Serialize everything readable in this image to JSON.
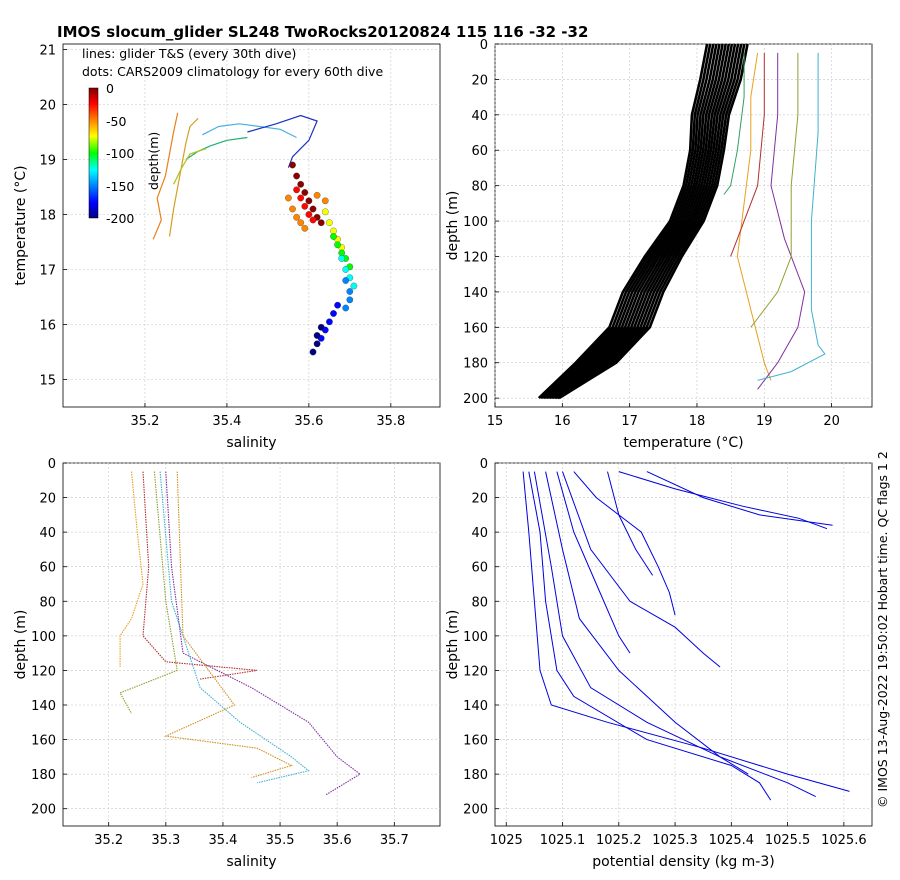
{
  "title": "IMOS slocum_glider SL248 TwoRocks20120824 115  116  -32  -32",
  "side_note": "© IMOS 13-Aug-2022 19:50:02 Hobart time. QC flags 1  2",
  "chart_data": [
    {
      "id": "ts",
      "type": "scatter",
      "xlabel": "salinity",
      "ylabel": "temperature (°C)",
      "xlim": [
        35.0,
        35.92
      ],
      "ylim": [
        14.5,
        21.1
      ],
      "xticks": [
        35.2,
        35.4,
        35.6,
        35.8
      ],
      "yticks": [
        15,
        16,
        17,
        18,
        19,
        20,
        21
      ],
      "legend": [
        "lines: glider T&S (every 30th dive)",
        "dots: CARS2009 climatology for every 60th dive"
      ],
      "colorbar": {
        "label": "depth(m)",
        "ticks": [
          0,
          -50,
          -100,
          -150,
          -200
        ],
        "range": [
          -200,
          0
        ]
      },
      "series": [
        {
          "name": "glider dive A",
          "color": "#e8801a",
          "points": [
            [
              35.22,
              17.55
            ],
            [
              35.24,
              17.9
            ],
            [
              35.23,
              18.3
            ],
            [
              35.25,
              18.7
            ],
            [
              35.26,
              19.1
            ],
            [
              35.27,
              19.5
            ],
            [
              35.28,
              19.85
            ]
          ]
        },
        {
          "name": "glider dive B",
          "color": "#d4a020",
          "points": [
            [
              35.26,
              17.6
            ],
            [
              35.27,
              18.1
            ],
            [
              35.28,
              18.5
            ],
            [
              35.29,
              18.9
            ],
            [
              35.3,
              19.3
            ],
            [
              35.31,
              19.6
            ],
            [
              35.33,
              19.75
            ]
          ]
        },
        {
          "name": "glider dive C",
          "color": "#4ab0e0",
          "points": [
            [
              35.34,
              19.45
            ],
            [
              35.38,
              19.6
            ],
            [
              35.43,
              19.65
            ],
            [
              35.48,
              19.6
            ],
            [
              35.53,
              19.55
            ],
            [
              35.57,
              19.4
            ]
          ]
        },
        {
          "name": "glider dive D",
          "color": "#1a30c0",
          "points": [
            [
              35.45,
              19.5
            ],
            [
              35.52,
              19.65
            ],
            [
              35.58,
              19.8
            ],
            [
              35.62,
              19.7
            ],
            [
              35.6,
              19.35
            ],
            [
              35.56,
              19.05
            ],
            [
              35.55,
              18.85
            ]
          ]
        },
        {
          "name": "glider dive E",
          "color": "#20b070",
          "points": [
            [
              35.3,
              19.0
            ],
            [
              35.33,
              19.15
            ],
            [
              35.36,
              19.25
            ],
            [
              35.4,
              19.35
            ],
            [
              35.45,
              19.4
            ]
          ]
        },
        {
          "name": "glider dive F",
          "color": "#b0c020",
          "points": [
            [
              35.27,
              18.55
            ],
            [
              35.29,
              18.85
            ],
            [
              35.31,
              19.1
            ],
            [
              35.35,
              19.2
            ]
          ]
        }
      ],
      "dots": [
        {
          "depth": -2,
          "points": [
            [
              35.56,
              18.9
            ],
            [
              35.57,
              18.7
            ],
            [
              35.58,
              18.55
            ],
            [
              35.59,
              18.4
            ],
            [
              35.6,
              18.25
            ],
            [
              35.61,
              18.1
            ],
            [
              35.62,
              17.95
            ],
            [
              35.63,
              17.85
            ]
          ]
        },
        {
          "depth": -25,
          "points": [
            [
              35.57,
              18.45
            ],
            [
              35.58,
              18.3
            ],
            [
              35.59,
              18.15
            ],
            [
              35.6,
              18.0
            ],
            [
              35.61,
              17.9
            ]
          ]
        },
        {
          "depth": -50,
          "points": [
            [
              35.55,
              18.3
            ],
            [
              35.56,
              18.1
            ],
            [
              35.57,
              17.95
            ],
            [
              35.58,
              17.85
            ],
            [
              35.59,
              17.75
            ],
            [
              35.62,
              18.35
            ],
            [
              35.64,
              18.25
            ]
          ]
        },
        {
          "depth": -75,
          "points": [
            [
              35.64,
              18.05
            ],
            [
              35.65,
              17.85
            ],
            [
              35.66,
              17.7
            ],
            [
              35.67,
              17.55
            ],
            [
              35.68,
              17.4
            ]
          ]
        },
        {
          "depth": -100,
          "points": [
            [
              35.66,
              17.6
            ],
            [
              35.67,
              17.45
            ],
            [
              35.68,
              17.3
            ],
            [
              35.69,
              17.2
            ],
            [
              35.7,
              17.05
            ]
          ]
        },
        {
          "depth": -125,
          "points": [
            [
              35.68,
              17.2
            ],
            [
              35.69,
              17.0
            ],
            [
              35.7,
              16.85
            ],
            [
              35.71,
              16.7
            ]
          ]
        },
        {
          "depth": -150,
          "points": [
            [
              35.69,
              16.8
            ],
            [
              35.7,
              16.6
            ],
            [
              35.7,
              16.45
            ],
            [
              35.69,
              16.3
            ]
          ]
        },
        {
          "depth": -175,
          "points": [
            [
              35.67,
              16.35
            ],
            [
              35.66,
              16.2
            ],
            [
              35.65,
              16.05
            ],
            [
              35.64,
              15.9
            ],
            [
              35.63,
              15.75
            ]
          ]
        },
        {
          "depth": -200,
          "points": [
            [
              35.63,
              15.95
            ],
            [
              35.62,
              15.8
            ],
            [
              35.62,
              15.65
            ],
            [
              35.61,
              15.5
            ]
          ]
        }
      ]
    },
    {
      "id": "temp",
      "type": "line",
      "xlabel": "temperature (°C)",
      "ylabel": "depth (m)",
      "xlim": [
        15,
        20.6
      ],
      "ylim": [
        0,
        205
      ],
      "xticks": [
        15,
        16,
        17,
        18,
        19,
        20
      ],
      "yticks": [
        0,
        20,
        40,
        60,
        80,
        100,
        120,
        140,
        160,
        180,
        200
      ],
      "climatology_profile": {
        "depth": [
          0,
          20,
          40,
          60,
          80,
          100,
          120,
          140,
          160,
          180,
          200
        ],
        "temperature": [
          18.45,
          18.35,
          18.2,
          18.15,
          18.05,
          17.85,
          17.5,
          17.2,
          17.0,
          16.5,
          15.8
        ],
        "spread": [
          0.6,
          0.6,
          0.55,
          0.5,
          0.5,
          0.5,
          0.55,
          0.6,
          0.6,
          0.6,
          0.3
        ]
      },
      "series": [
        {
          "name": "p1",
          "color": "#e8a020",
          "depth": [
            5,
            30,
            60,
            90,
            120,
            150,
            180,
            190
          ],
          "values": [
            18.9,
            18.8,
            18.8,
            18.7,
            18.6,
            18.8,
            19.0,
            19.1
          ]
        },
        {
          "name": "p2",
          "color": "#b03030",
          "depth": [
            5,
            40,
            80,
            100,
            110,
            120
          ],
          "values": [
            19.0,
            19.0,
            18.9,
            18.7,
            18.6,
            18.5
          ]
        },
        {
          "name": "p3",
          "color": "#8030a0",
          "depth": [
            5,
            40,
            80,
            110,
            140,
            160,
            180,
            195
          ],
          "values": [
            19.2,
            19.2,
            19.1,
            19.3,
            19.6,
            19.5,
            19.2,
            18.9
          ]
        },
        {
          "name": "p4",
          "color": "#40b0d0",
          "depth": [
            5,
            50,
            100,
            150,
            170,
            175,
            185,
            190
          ],
          "values": [
            19.8,
            19.8,
            19.7,
            19.7,
            19.8,
            19.9,
            19.4,
            18.9
          ]
        },
        {
          "name": "p5",
          "color": "#90a030",
          "depth": [
            5,
            40,
            80,
            120,
            140,
            155,
            160
          ],
          "values": [
            19.5,
            19.5,
            19.4,
            19.4,
            19.2,
            18.9,
            18.8
          ]
        },
        {
          "name": "p6",
          "color": "#30a060",
          "depth": [
            5,
            30,
            60,
            80,
            85
          ],
          "values": [
            18.7,
            18.7,
            18.6,
            18.5,
            18.4
          ]
        }
      ]
    },
    {
      "id": "sal",
      "type": "line",
      "xlabel": "salinity",
      "ylabel": "depth (m)",
      "xlim": [
        35.12,
        35.78
      ],
      "ylim": [
        0,
        210
      ],
      "xticks": [
        35.2,
        35.3,
        35.4,
        35.5,
        35.6,
        35.7
      ],
      "yticks": [
        0,
        20,
        40,
        60,
        80,
        100,
        120,
        140,
        160,
        180,
        200
      ],
      "series": [
        {
          "name": "s1",
          "color": "#e8a020",
          "depth": [
            5,
            40,
            70,
            90,
            100,
            110,
            118
          ],
          "values": [
            35.24,
            35.25,
            35.26,
            35.24,
            35.22,
            35.22,
            35.22
          ]
        },
        {
          "name": "s2",
          "color": "#b03030",
          "depth": [
            5,
            60,
            100,
            115,
            120,
            125
          ],
          "values": [
            35.26,
            35.27,
            35.26,
            35.3,
            35.46,
            35.36
          ]
        },
        {
          "name": "s3",
          "color": "#8030a0",
          "depth": [
            5,
            60,
            110,
            130,
            150,
            170,
            180,
            192
          ],
          "values": [
            35.3,
            35.31,
            35.33,
            35.45,
            35.55,
            35.6,
            35.64,
            35.58
          ]
        },
        {
          "name": "s4",
          "color": "#40b0d0",
          "depth": [
            5,
            80,
            130,
            150,
            170,
            178,
            185
          ],
          "values": [
            35.29,
            35.31,
            35.36,
            35.43,
            35.52,
            35.55,
            35.46
          ]
        },
        {
          "name": "s5",
          "color": "#90a030",
          "depth": [
            5,
            80,
            120,
            133,
            145
          ],
          "values": [
            35.28,
            35.3,
            35.32,
            35.22,
            35.24
          ]
        },
        {
          "name": "s6",
          "color": "#d09020",
          "depth": [
            5,
            100,
            140,
            158,
            165,
            175,
            182
          ],
          "values": [
            35.32,
            35.33,
            35.42,
            35.3,
            35.46,
            35.52,
            35.45
          ]
        }
      ]
    },
    {
      "id": "dens",
      "type": "line",
      "xlabel": "potential density (kg m-3)",
      "ylabel": "depth (m)",
      "xlim": [
        1024.98,
        1025.65
      ],
      "ylim": [
        0,
        210
      ],
      "xticks": [
        1025,
        1025.1,
        1025.2,
        1025.3,
        1025.4,
        1025.5,
        1025.6
      ],
      "yticks": [
        0,
        20,
        40,
        60,
        80,
        100,
        120,
        140,
        160,
        180,
        200
      ],
      "series_color": "#0000e0",
      "series": [
        {
          "name": "d1",
          "depth": [
            5,
            40,
            80,
            120,
            140,
            150,
            165,
            180,
            190
          ],
          "values": [
            1025.03,
            1025.04,
            1025.05,
            1025.06,
            1025.08,
            1025.18,
            1025.35,
            1025.5,
            1025.61
          ]
        },
        {
          "name": "d2",
          "depth": [
            5,
            40,
            80,
            120,
            135,
            160,
            175,
            185,
            195
          ],
          "values": [
            1025.04,
            1025.06,
            1025.07,
            1025.09,
            1025.12,
            1025.25,
            1025.4,
            1025.45,
            1025.47
          ]
        },
        {
          "name": "d3",
          "depth": [
            5,
            60,
            100,
            130,
            150,
            170,
            185,
            193
          ],
          "values": [
            1025.05,
            1025.08,
            1025.1,
            1025.15,
            1025.25,
            1025.38,
            1025.5,
            1025.55
          ]
        },
        {
          "name": "d4",
          "depth": [
            5,
            50,
            90,
            120,
            150,
            170,
            180
          ],
          "values": [
            1025.07,
            1025.1,
            1025.13,
            1025.2,
            1025.3,
            1025.38,
            1025.43
          ]
        },
        {
          "name": "d5",
          "depth": [
            5,
            50,
            80,
            95,
            110,
            118
          ],
          "values": [
            1025.1,
            1025.15,
            1025.22,
            1025.3,
            1025.35,
            1025.38
          ]
        },
        {
          "name": "d6",
          "depth": [
            5,
            20,
            30,
            40,
            60,
            75,
            88
          ],
          "values": [
            1025.12,
            1025.16,
            1025.2,
            1025.24,
            1025.27,
            1025.29,
            1025.3
          ]
        },
        {
          "name": "d7",
          "depth": [
            5,
            15,
            25,
            32,
            38
          ],
          "values": [
            1025.2,
            1025.3,
            1025.42,
            1025.52,
            1025.57
          ]
        },
        {
          "name": "d8",
          "depth": [
            5,
            20,
            30,
            36
          ],
          "values": [
            1025.25,
            1025.35,
            1025.45,
            1025.58
          ]
        },
        {
          "name": "d9",
          "depth": [
            5,
            30,
            50,
            65
          ],
          "values": [
            1025.18,
            1025.2,
            1025.23,
            1025.26
          ]
        },
        {
          "name": "d10",
          "depth": [
            5,
            40,
            70,
            100,
            110
          ],
          "values": [
            1025.09,
            1025.12,
            1025.16,
            1025.2,
            1025.22
          ]
        }
      ]
    }
  ]
}
